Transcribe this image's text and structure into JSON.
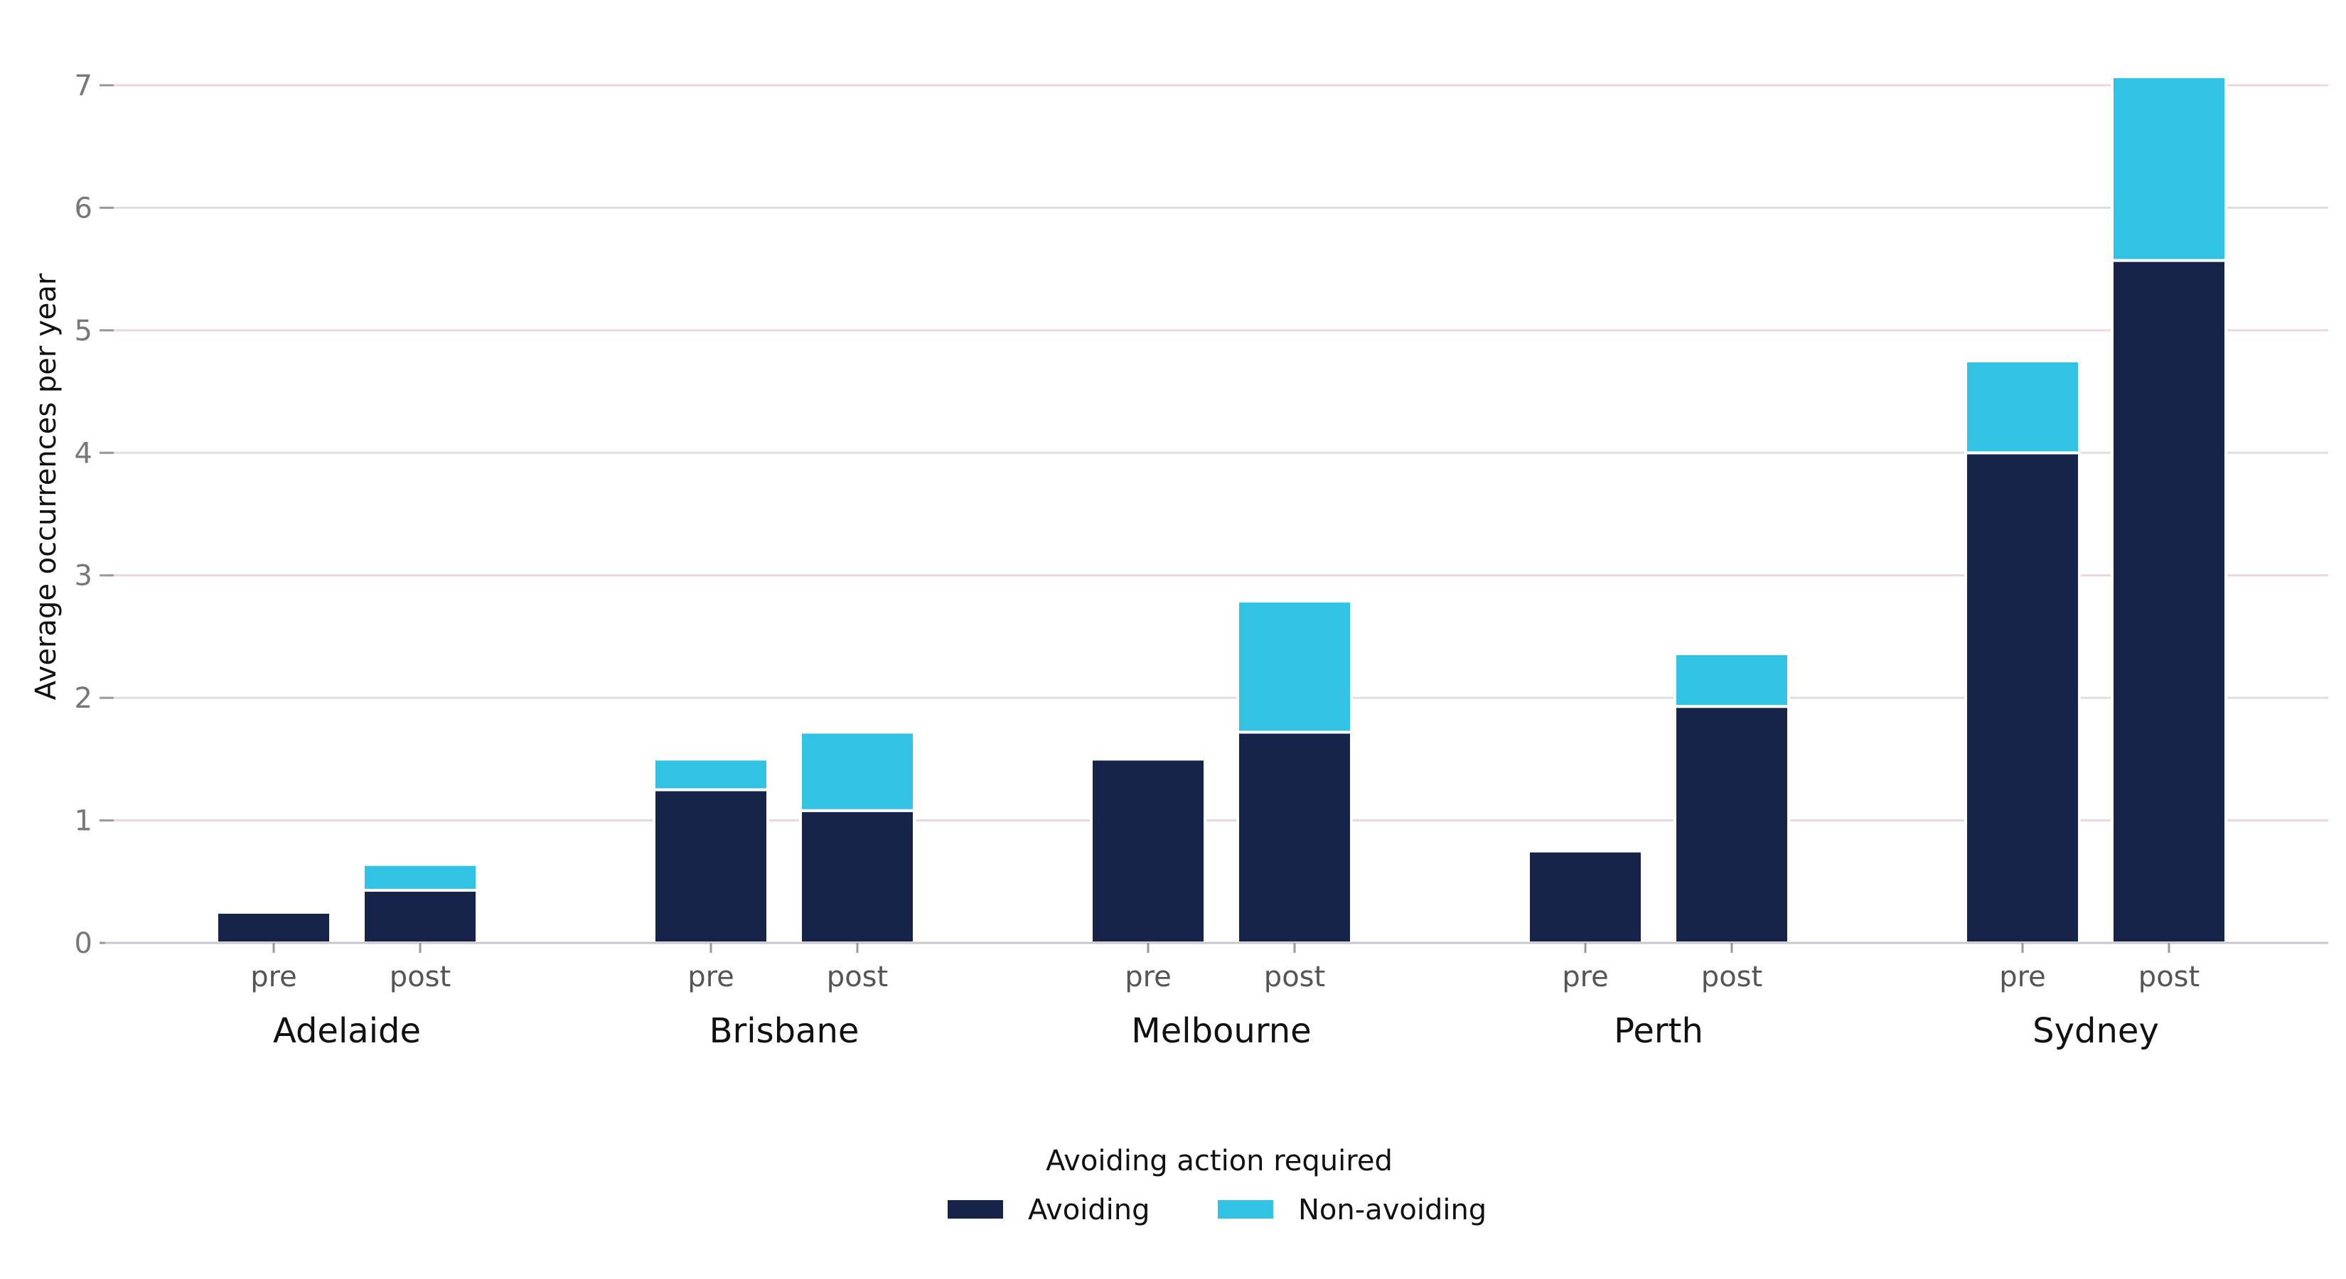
{
  "chart_data": {
    "type": "bar",
    "stacked": true,
    "grouped": true,
    "ylabel": "Average occurrences per year",
    "xlabel": "",
    "ylim": [
      0,
      7.2
    ],
    "yticks": [
      0,
      1,
      2,
      3,
      4,
      5,
      6,
      7
    ],
    "grid": true,
    "groups": [
      "Adelaide",
      "Brisbane",
      "Melbourne",
      "Perth",
      "Sydney"
    ],
    "subcategories": [
      "pre",
      "post"
    ],
    "series": [
      {
        "name": "Avoiding",
        "color": "#16244a",
        "values": [
          [
            0.25,
            0.43
          ],
          [
            1.25,
            1.08
          ],
          [
            1.5,
            1.72
          ],
          [
            0.75,
            1.93
          ],
          [
            4.0,
            5.57
          ]
        ]
      },
      {
        "name": "Non-avoiding",
        "color": "#31c2e4",
        "values": [
          [
            0.0,
            0.21
          ],
          [
            0.25,
            0.64
          ],
          [
            0.0,
            1.07
          ],
          [
            0.0,
            0.43
          ],
          [
            0.75,
            1.5
          ]
        ]
      }
    ],
    "legend": {
      "title": "Avoiding action required",
      "position": "bottom-center"
    }
  }
}
